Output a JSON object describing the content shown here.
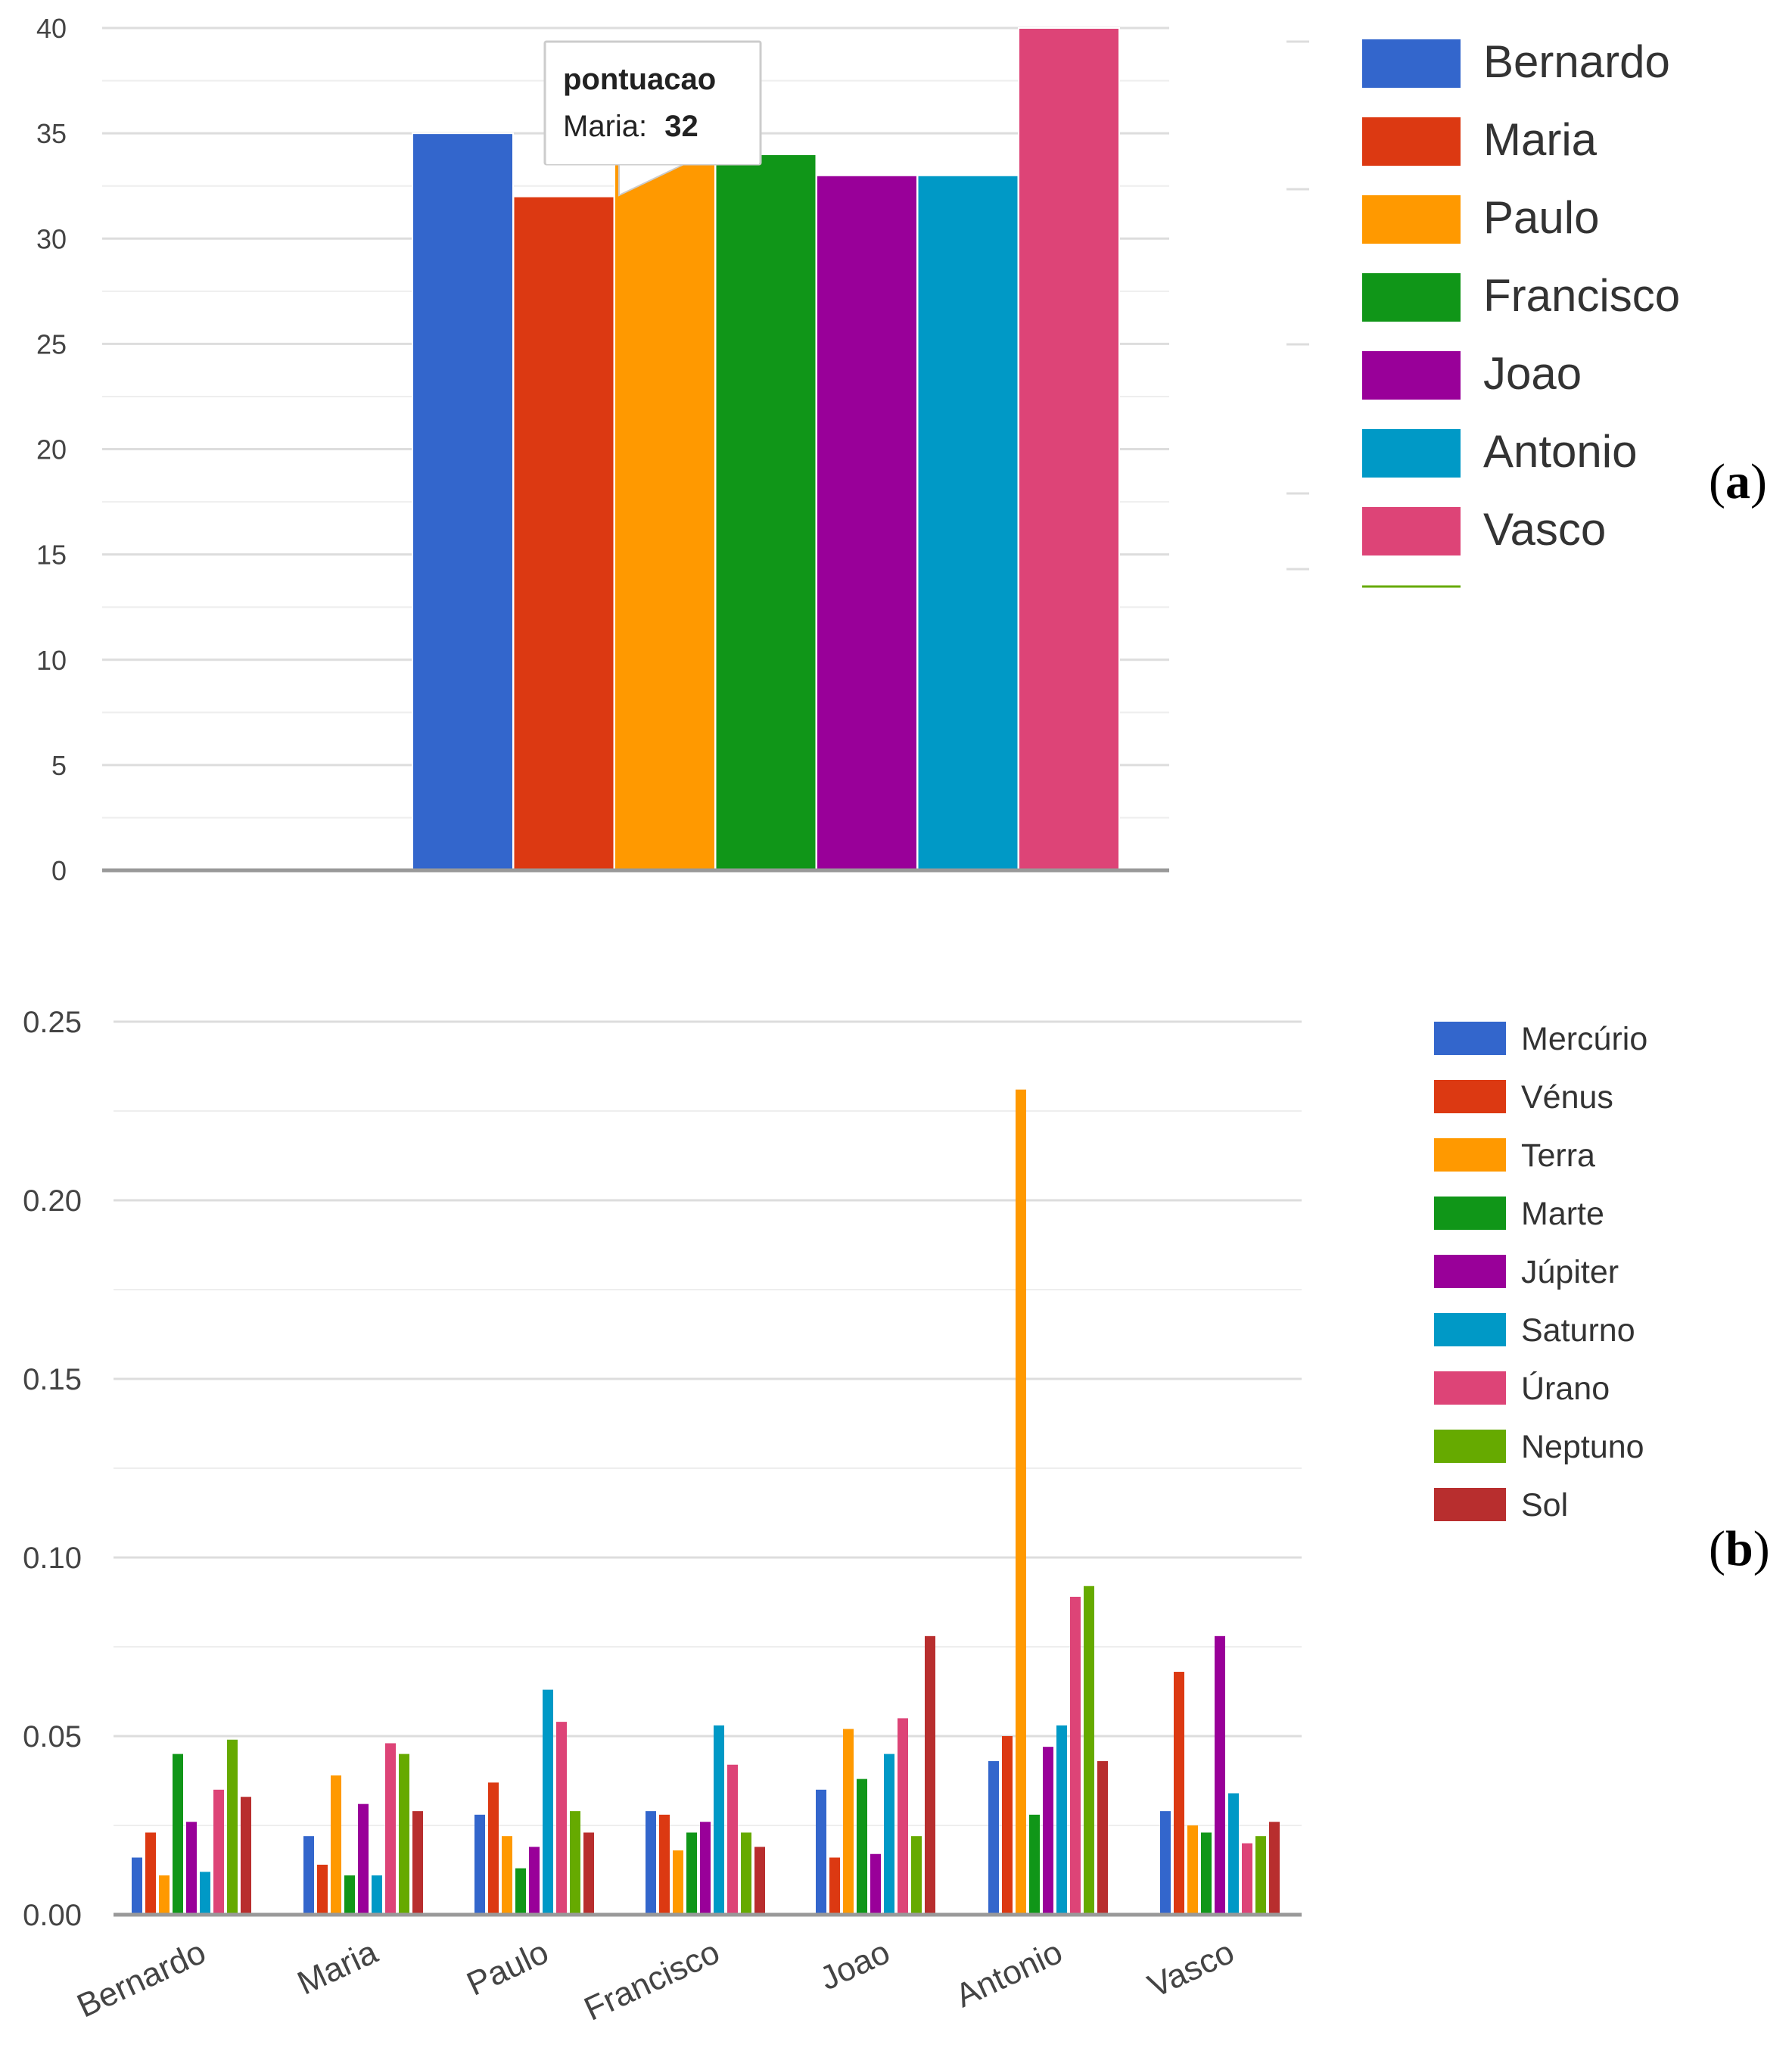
{
  "chart_data": [
    {
      "type": "bar",
      "panel_label_paren_open": "(",
      "panel_label_letter": "a",
      "panel_label_paren_close": ")",
      "categories": [
        ""
      ],
      "series": [
        {
          "name": "Bernardo",
          "color": "#3366cc",
          "values": [
            35
          ]
        },
        {
          "name": "Maria",
          "color": "#dc3912",
          "values": [
            32
          ]
        },
        {
          "name": "Paulo",
          "color": "#ff9900",
          "values": [
            34
          ]
        },
        {
          "name": "Francisco",
          "color": "#109618",
          "values": [
            34
          ]
        },
        {
          "name": "Joao",
          "color": "#990099",
          "values": [
            33
          ]
        },
        {
          "name": "Antonio",
          "color": "#0099c6",
          "values": [
            33
          ]
        },
        {
          "name": "Vasco",
          "color": "#dd4477",
          "values": [
            40
          ]
        }
      ],
      "yticks": [
        "0",
        "5",
        "10",
        "15",
        "20",
        "25",
        "30",
        "35",
        "40"
      ],
      "ylim": [
        0,
        40
      ],
      "legend_position": "right",
      "tooltip": {
        "title": "pontuacao",
        "label": "Maria:",
        "value": "32"
      }
    },
    {
      "type": "bar",
      "panel_label_paren_open": "(",
      "panel_label_letter": "b",
      "panel_label_paren_close": ")",
      "categories": [
        "Bernardo",
        "Maria",
        "Paulo",
        "Francisco",
        "Joao",
        "Antonio",
        "Vasco"
      ],
      "series": [
        {
          "name": "Mercúrio",
          "color": "#3366cc",
          "values": [
            0.016,
            0.022,
            0.028,
            0.029,
            0.035,
            0.043,
            0.029
          ]
        },
        {
          "name": "Vénus",
          "color": "#dc3912",
          "values": [
            0.023,
            0.014,
            0.037,
            0.028,
            0.016,
            0.05,
            0.068
          ]
        },
        {
          "name": "Terra",
          "color": "#ff9900",
          "values": [
            0.011,
            0.039,
            0.022,
            0.018,
            0.052,
            0.231,
            0.025
          ]
        },
        {
          "name": "Marte",
          "color": "#109618",
          "values": [
            0.045,
            0.011,
            0.013,
            0.023,
            0.038,
            0.028,
            0.023
          ]
        },
        {
          "name": "Júpiter",
          "color": "#990099",
          "values": [
            0.026,
            0.031,
            0.019,
            0.026,
            0.017,
            0.047,
            0.078
          ]
        },
        {
          "name": "Saturno",
          "color": "#0099c6",
          "values": [
            0.012,
            0.011,
            0.063,
            0.053,
            0.045,
            0.053,
            0.034
          ]
        },
        {
          "name": "Úrano",
          "color": "#dd4477",
          "values": [
            0.035,
            0.048,
            0.054,
            0.042,
            0.055,
            0.089,
            0.02
          ]
        },
        {
          "name": "Neptuno",
          "color": "#66aa00",
          "values": [
            0.049,
            0.045,
            0.029,
            0.023,
            0.022,
            0.092,
            0.022
          ]
        },
        {
          "name": "Sol",
          "color": "#b82e2e",
          "values": [
            0.033,
            0.029,
            0.023,
            0.019,
            0.078,
            0.043,
            0.026
          ]
        }
      ],
      "yticks": [
        "0.00",
        "0.05",
        "0.10",
        "0.15",
        "0.20",
        "0.25"
      ],
      "ylim": [
        0,
        0.25
      ],
      "legend_position": "right"
    }
  ]
}
